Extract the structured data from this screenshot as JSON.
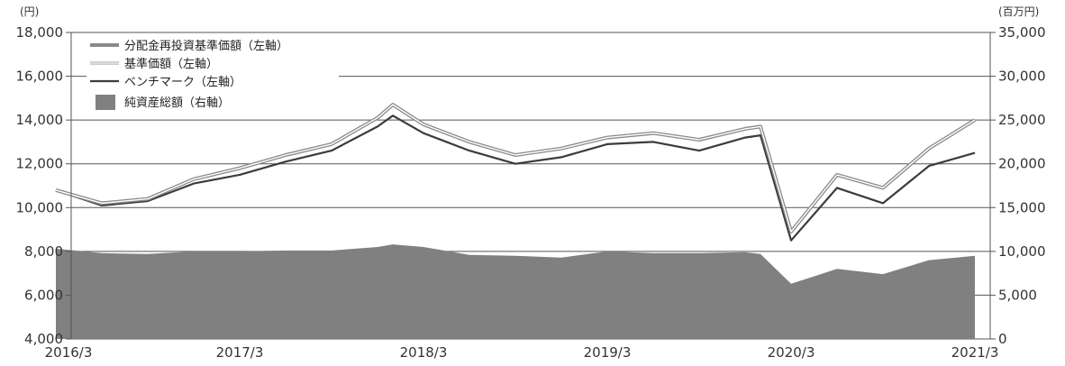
{
  "chart_data": {
    "type": "line",
    "left_axis": {
      "unit": "(円)",
      "min": 4000,
      "max": 18000,
      "ticks": [
        4000,
        6000,
        8000,
        10000,
        12000,
        14000,
        16000,
        18000
      ],
      "tick_labels": [
        "4,000",
        "6,000",
        "8,000",
        "10,000",
        "12,000",
        "14,000",
        "16,000",
        "18,000"
      ]
    },
    "right_axis": {
      "unit": "(百万円)",
      "min": 0,
      "max": 35000,
      "ticks": [
        0,
        5000,
        10000,
        15000,
        20000,
        25000,
        30000,
        35000
      ],
      "tick_labels": [
        "0",
        "5,000",
        "10,000",
        "15,000",
        "20,000",
        "25,000",
        "30,000",
        "35,000"
      ]
    },
    "x_labels": [
      "2016/3",
      "2017/3",
      "2018/3",
      "2019/3",
      "2020/3",
      "2021/3"
    ],
    "grid": true,
    "legend_position": "top-left",
    "colors": {
      "nav_reinvested": "#8a8a8a",
      "nav": "#9a9a9a",
      "benchmark": "#3c3c3c",
      "net_assets": "#808080"
    },
    "series": [
      {
        "name": "分配金再投資基準価額（左軸）",
        "axis": "left",
        "style": "thick-gray-line",
        "x": [
          "2016/3",
          "2016/6",
          "2016/9",
          "2016/12",
          "2017/3",
          "2017/6",
          "2017/9",
          "2017/12",
          "2018/1",
          "2018/3",
          "2018/6",
          "2018/9",
          "2018/12",
          "2019/3",
          "2019/6",
          "2019/9",
          "2019/12",
          "2020/1",
          "2020/3",
          "2020/6",
          "2020/9",
          "2020/12",
          "2021/3"
        ],
        "values": [
          10800,
          10200,
          10400,
          11300,
          11800,
          12400,
          12900,
          14100,
          14700,
          13800,
          13000,
          12400,
          12700,
          13200,
          13400,
          13100,
          13600,
          13700,
          8900,
          11500,
          10900,
          12700,
          14000
        ]
      },
      {
        "name": "基準価額（左軸）",
        "axis": "left",
        "style": "thin-outline-line",
        "x": [
          "2016/3",
          "2016/6",
          "2016/9",
          "2016/12",
          "2017/3",
          "2017/6",
          "2017/9",
          "2017/12",
          "2018/1",
          "2018/3",
          "2018/6",
          "2018/9",
          "2018/12",
          "2019/3",
          "2019/6",
          "2019/9",
          "2019/12",
          "2020/1",
          "2020/3",
          "2020/6",
          "2020/9",
          "2020/12",
          "2021/3"
        ],
        "values": [
          10800,
          10200,
          10400,
          11300,
          11800,
          12400,
          12900,
          14100,
          14700,
          13800,
          13000,
          12400,
          12700,
          13200,
          13400,
          13100,
          13600,
          13700,
          8900,
          11500,
          10900,
          12700,
          14000
        ]
      },
      {
        "name": "ベンチマーク（左軸）",
        "axis": "left",
        "style": "dark-line",
        "x": [
          "2016/3",
          "2016/6",
          "2016/9",
          "2016/12",
          "2017/3",
          "2017/6",
          "2017/9",
          "2017/12",
          "2018/1",
          "2018/3",
          "2018/6",
          "2018/9",
          "2018/12",
          "2019/3",
          "2019/6",
          "2019/9",
          "2019/12",
          "2020/1",
          "2020/3",
          "2020/6",
          "2020/9",
          "2020/12",
          "2021/3"
        ],
        "values": [
          10800,
          10100,
          10300,
          11100,
          11500,
          12100,
          12600,
          13700,
          14200,
          13400,
          12600,
          12000,
          12300,
          12900,
          13000,
          12600,
          13200,
          13300,
          8500,
          10900,
          10200,
          11900,
          12500
        ]
      },
      {
        "name": "純資産総額（右軸）",
        "axis": "right",
        "style": "area",
        "x": [
          "2016/3",
          "2016/6",
          "2016/9",
          "2016/12",
          "2017/3",
          "2017/6",
          "2017/9",
          "2017/12",
          "2018/1",
          "2018/3",
          "2018/6",
          "2018/9",
          "2018/12",
          "2019/3",
          "2019/6",
          "2019/9",
          "2019/12",
          "2020/1",
          "2020/3",
          "2020/6",
          "2020/9",
          "2020/12",
          "2021/3"
        ],
        "values": [
          10300,
          9800,
          9700,
          10000,
          10000,
          10100,
          10100,
          10500,
          10800,
          10500,
          9600,
          9500,
          9300,
          10000,
          9800,
          9800,
          9900,
          9700,
          6300,
          8000,
          7400,
          9000,
          9500
        ]
      }
    ]
  }
}
